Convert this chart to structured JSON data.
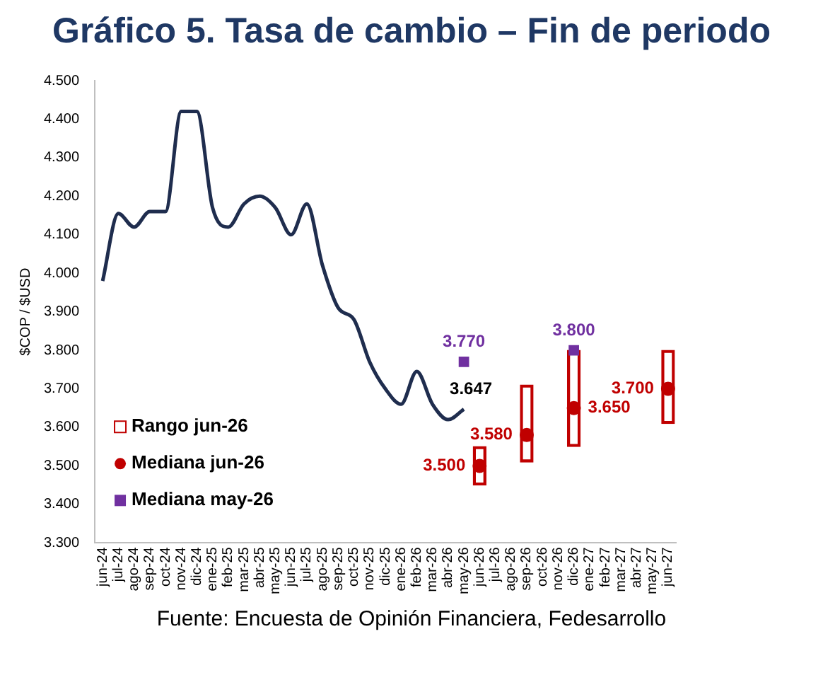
{
  "chart_data": {
    "type": "line",
    "title": "Gráfico 5. Tasa de cambio – Fin de periodo",
    "ylabel": "$COP / $USD",
    "categories": [
      "jun-24",
      "jul-24",
      "ago-24",
      "sep-24",
      "oct-24",
      "nov-24",
      "dic-24",
      "ene-25",
      "feb-25",
      "mar-25",
      "abr-25",
      "may-25",
      "jun-25",
      "jul-25",
      "ago-25",
      "sep-25",
      "oct-25",
      "nov-25",
      "dic-25",
      "ene-26",
      "feb-26",
      "mar-26",
      "abr-26",
      "may-26",
      "jun-26",
      "jul-26",
      "ago-26",
      "sep-26",
      "oct-26",
      "nov-26",
      "dic-26",
      "ene-27",
      "feb-27",
      "mar-27",
      "abr-27",
      "may-27",
      "jun-27"
    ],
    "series": [
      {
        "color": "#1f2d4e",
        "marker": "none",
        "values": [
          3.98,
          4.155,
          4.12,
          4.16,
          4.16,
          4.42,
          4.42,
          4.17,
          4.12,
          4.18,
          4.2,
          4.17,
          4.1,
          4.18,
          4.02,
          3.91,
          3.88,
          3.77,
          3.7,
          3.66,
          3.745,
          3.66,
          3.62,
          3.647,
          null,
          null,
          null,
          null,
          null,
          null,
          null,
          null,
          null,
          null,
          null,
          null,
          null
        ],
        "value_labels": [
          null,
          null,
          null,
          null,
          null,
          null,
          null,
          null,
          null,
          null,
          null,
          null,
          null,
          null,
          null,
          null,
          null,
          null,
          null,
          null,
          null,
          null,
          null,
          "3.647",
          null,
          null,
          null,
          null,
          null,
          null,
          null,
          null,
          null,
          null,
          null,
          null,
          null
        ]
      },
      {
        "type": "bar",
        "name": "Rango jun-26",
        "color": "#c00000",
        "values": [
          null,
          null,
          null,
          null,
          null,
          null,
          null,
          null,
          null,
          null,
          null,
          null,
          null,
          null,
          null,
          null,
          null,
          null,
          null,
          null,
          null,
          null,
          null,
          null,
          0.1,
          null,
          null,
          0.2,
          null,
          null,
          0.25,
          null,
          null,
          null,
          null,
          null,
          0.19
        ],
        "base": [
          null,
          null,
          null,
          null,
          null,
          null,
          null,
          null,
          null,
          null,
          null,
          null,
          null,
          null,
          null,
          null,
          null,
          null,
          null,
          null,
          null,
          null,
          null,
          null,
          3.45,
          null,
          null,
          3.51,
          null,
          null,
          3.55,
          null,
          null,
          null,
          null,
          null,
          3.61
        ]
      },
      {
        "type": "scatter",
        "name": "Mediana jun-26",
        "color": "#c00000",
        "marker": "circle",
        "x": [
          "jun-26",
          "sep-26",
          "dic-26",
          "jun-27"
        ],
        "values": [
          3.5,
          3.58,
          3.65,
          3.7
        ],
        "value_labels": [
          "3.500",
          "3.580",
          "3.650",
          "3.700"
        ]
      },
      {
        "type": "scatter",
        "name": "Mediana may-26",
        "color": "#7030a0",
        "marker": "square",
        "x": [
          "may-26",
          "dic-26"
        ],
        "values": [
          3.77,
          3.8
        ],
        "value_labels": [
          "3.770",
          "3.800"
        ]
      }
    ],
    "ylim": [
      3.3,
      4.5
    ],
    "yticks": [
      {
        "value": 3.3,
        "label": "3.300"
      },
      {
        "value": 3.4,
        "label": "3.400"
      },
      {
        "value": 3.5,
        "label": "3.500"
      },
      {
        "value": 3.6,
        "label": "3.600"
      },
      {
        "value": 3.7,
        "label": "3.700"
      },
      {
        "value": 3.8,
        "label": "3.800"
      },
      {
        "value": 3.9,
        "label": "3.900"
      },
      {
        "value": 4.0,
        "label": "4.000"
      },
      {
        "value": 4.1,
        "label": "4.100"
      },
      {
        "value": 4.2,
        "label": "4.200"
      },
      {
        "value": 4.3,
        "label": "4.300"
      },
      {
        "value": 4.4,
        "label": "4.400"
      },
      {
        "value": 4.5,
        "label": "4.500"
      }
    ],
    "grid": false,
    "legend": "bottom left",
    "annotations": [
      "Fuente: Encuesta de Opinión Financiera, Fedesarrollo"
    ]
  }
}
